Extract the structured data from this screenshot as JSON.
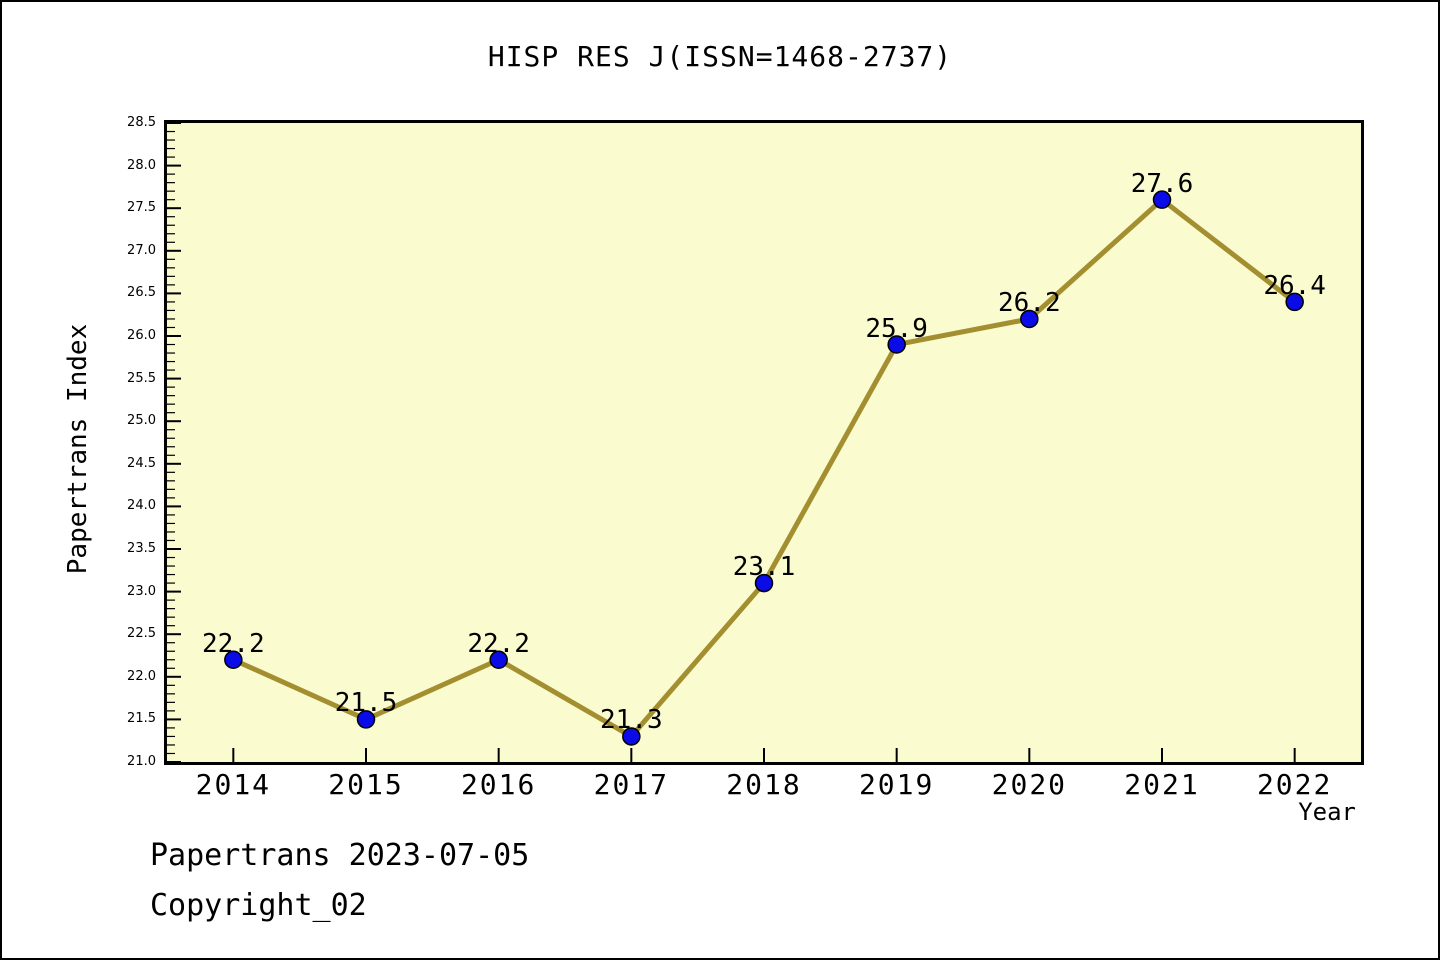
{
  "title": "HISP RES J(ISSN=1468-2737)",
  "footer": {
    "line1": "Papertrans 2023-07-05",
    "line2": "Copyright_02"
  },
  "chart_data": {
    "type": "line",
    "title": "HISP RES J(ISSN=1468-2737)",
    "xlabel": "Year",
    "ylabel": "Papertrans Index",
    "categories": [
      2014,
      2015,
      2016,
      2017,
      2018,
      2019,
      2020,
      2021,
      2022
    ],
    "values": [
      22.2,
      21.5,
      22.2,
      21.3,
      23.1,
      25.9,
      26.2,
      27.6,
      26.4
    ],
    "point_labels": [
      "22.2",
      "21.5",
      "22.2",
      "21.3",
      "23.1",
      "25.9",
      "26.2",
      "27.6",
      "26.4"
    ],
    "ylim": [
      21.0,
      28.5
    ],
    "ytick_step": 0.5,
    "yminor_step": 0.1,
    "grid": false,
    "legend": null,
    "colors": {
      "plot_bg": "#FBFBD0",
      "line": "#A38F30",
      "marker": "#0B0BE8",
      "marker_edge": "#000000",
      "frame": "#000000",
      "text": "#000000"
    }
  }
}
